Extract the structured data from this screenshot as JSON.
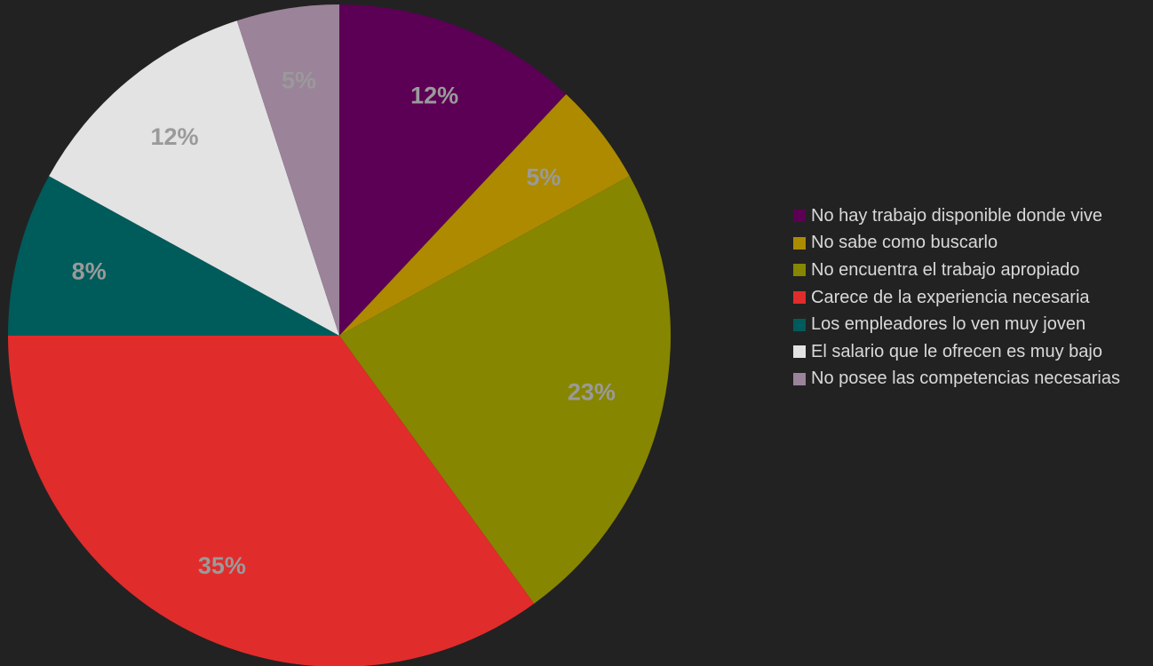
{
  "chart_data": {
    "type": "pie",
    "start_angle": "top",
    "direction": "clockwise",
    "slices": [
      {
        "name": "No hay trabajo disponible donde vive",
        "value": 12,
        "label": "12%",
        "color": "#5b0054"
      },
      {
        "name": "No sabe como buscarlo",
        "value": 5,
        "label": "5%",
        "color": "#ad8a00"
      },
      {
        "name": "No encuentra el trabajo apropiado",
        "value": 23,
        "label": "23%",
        "color": "#868600"
      },
      {
        "name": "Carece de la experiencia necesaria",
        "value": 35,
        "label": "35%",
        "color": "#e12c2c"
      },
      {
        "name": "Los empleadores lo ven muy joven",
        "value": 8,
        "label": "8%",
        "color": "#005b5b"
      },
      {
        "name": "El salario que le ofrecen es muy bajo",
        "value": 12,
        "label": "12%",
        "color": "#e3e3e3"
      },
      {
        "name": "No posee las competencias necesarias",
        "value": 5,
        "label": "5%",
        "color": "#9b8399"
      }
    ],
    "legend_position": "right",
    "label_color": "#9a9a9a",
    "background": "#222222"
  }
}
